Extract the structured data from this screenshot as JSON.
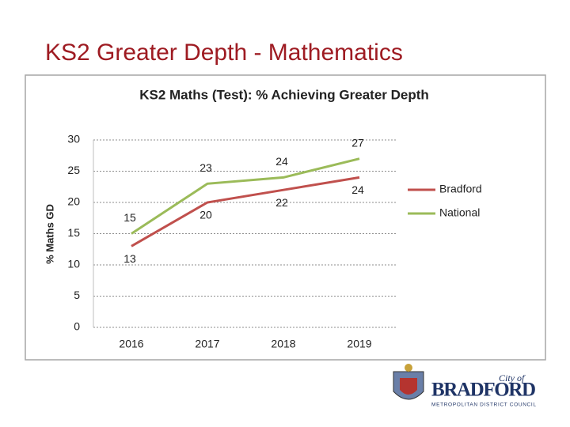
{
  "slide_title": "KS2 Greater Depth  - Mathematics",
  "chart_data": {
    "type": "line",
    "title": "KS2 Maths (Test): % Achieving Greater Depth",
    "y_label": "% Maths GD",
    "categories": [
      "2016",
      "2017",
      "2018",
      "2019"
    ],
    "series": [
      {
        "name": "Bradford",
        "color": "#c0504d",
        "values": [
          13,
          20,
          22,
          24
        ]
      },
      {
        "name": "National",
        "color": "#9bbb59",
        "values": [
          15,
          23,
          24,
          27
        ]
      }
    ],
    "ylim": [
      0,
      30
    ],
    "yticks": [
      0,
      5,
      10,
      15,
      20,
      25,
      30
    ],
    "grid": true,
    "legend": "right"
  },
  "logo": {
    "line1": "City of",
    "line2": "BRADFORD",
    "line3": "METROPOLITAN DISTRICT COUNCIL"
  }
}
